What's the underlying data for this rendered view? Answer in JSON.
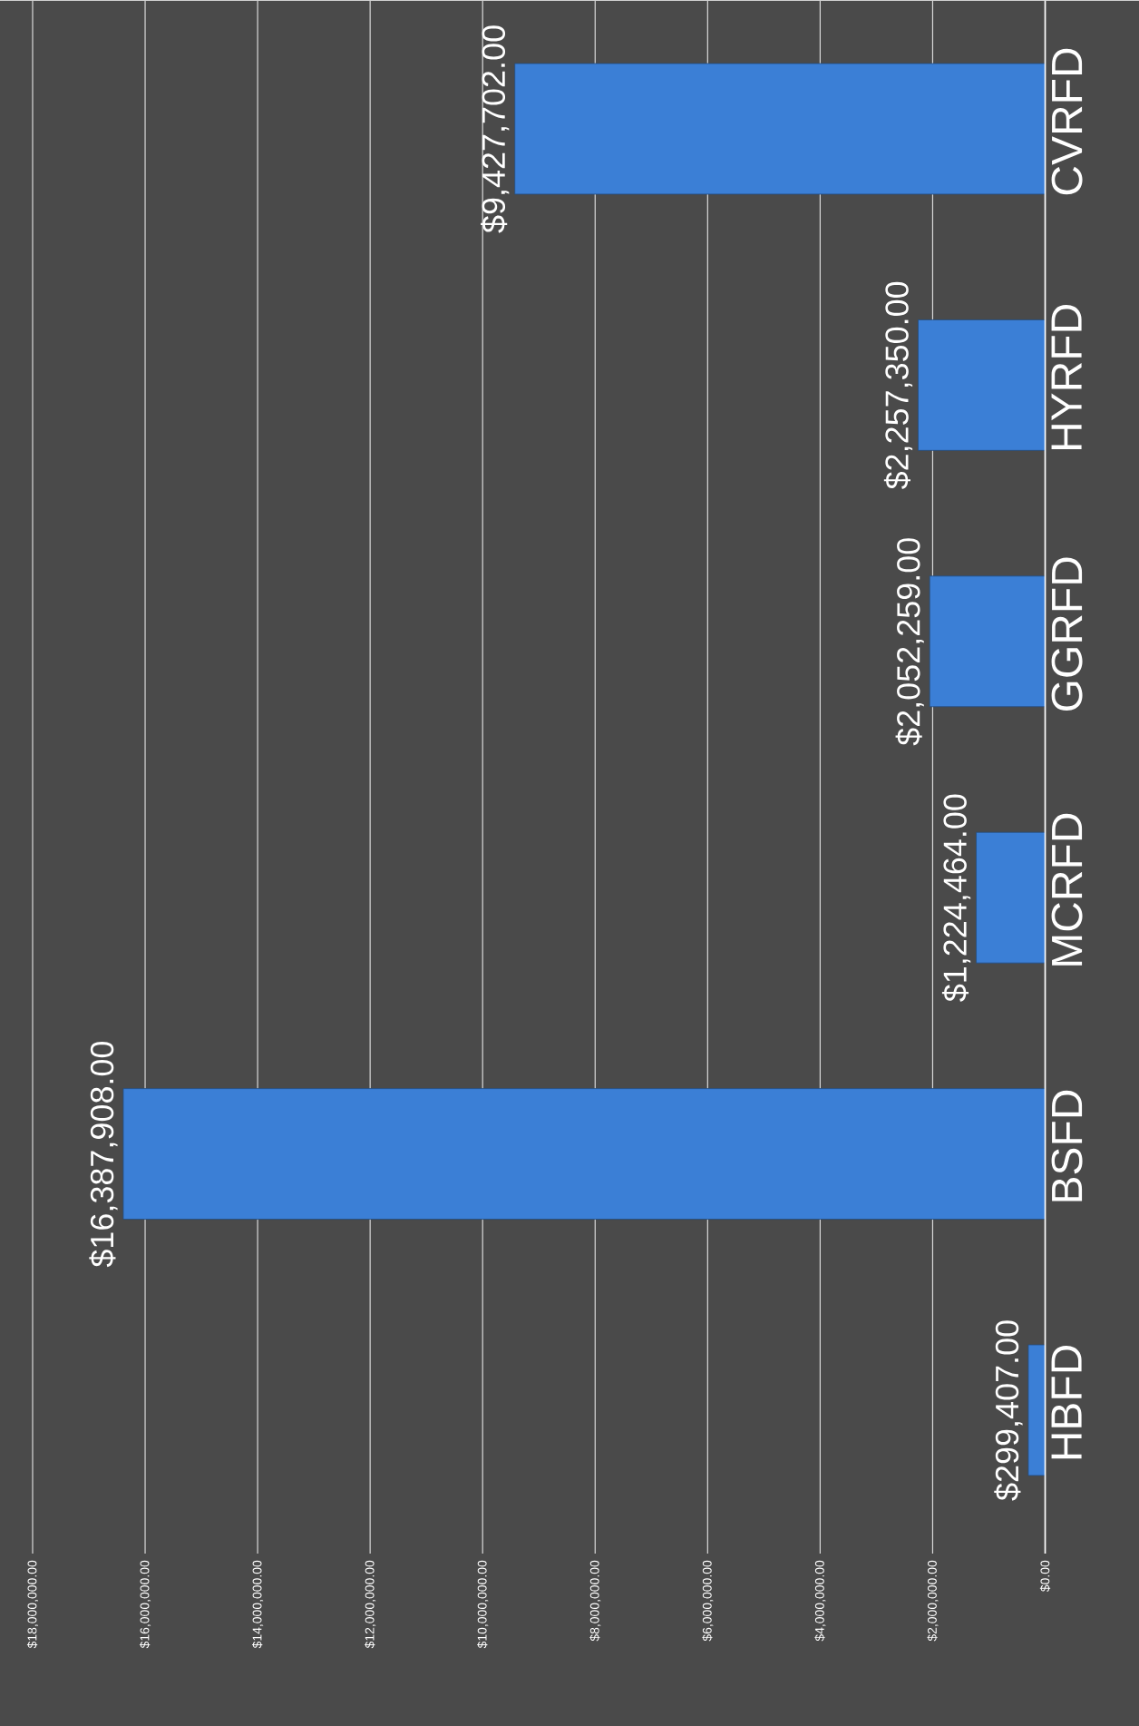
{
  "chart_data": {
    "type": "bar",
    "orientation": "horizontal",
    "categories": [
      "CVRFD",
      "HYRFD",
      "GGRFD",
      "MCRFD",
      "BSFD",
      "HBFD"
    ],
    "values": [
      9427702,
      2257350,
      2052259,
      1224464,
      16387908,
      299407
    ],
    "value_labels": [
      "$9,427,702.00",
      "$2,257,350.00",
      "$2,052,259.00",
      "$1,224,464.00",
      "$16,387,908.00",
      "$299,407.00"
    ],
    "color": "#3b7fd6",
    "xlim": [
      18000000,
      0
    ],
    "xticks": [
      {
        "value": 0,
        "label": "$0.00"
      },
      {
        "value": 2000000,
        "label": "$2,000,000.00"
      },
      {
        "value": 4000000,
        "label": "$4,000,000.00"
      },
      {
        "value": 6000000,
        "label": "$6,000,000.00"
      },
      {
        "value": 8000000,
        "label": "$8,000,000.00"
      },
      {
        "value": 10000000,
        "label": "$10,000,000.00"
      },
      {
        "value": 12000000,
        "label": "$12,000,000.00"
      },
      {
        "value": 14000000,
        "label": "$14,000,000.00"
      },
      {
        "value": 16000000,
        "label": "$16,000,000.00"
      },
      {
        "value": 18000000,
        "label": "$18,000,000.00"
      }
    ],
    "grid": "x"
  }
}
